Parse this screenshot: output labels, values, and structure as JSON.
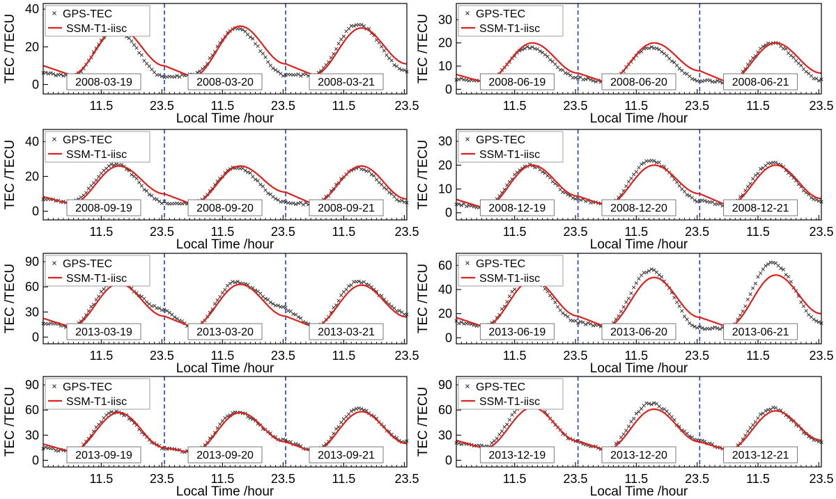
{
  "colors": {
    "gps": "#333333",
    "model": "#e0201b",
    "divider": "#1f3fd6",
    "axis": "#000000",
    "background": "#ffffff"
  },
  "shared": {
    "ylabel": "TEC /TECU",
    "xlabel": "Local Time /hour",
    "xticks": [
      "11.5",
      "23.5",
      "11.5",
      "23.5",
      "11.5",
      "23.5"
    ],
    "legend": {
      "gps_label": "GPS-TEC",
      "model_label": "SSM-T1-iisc"
    }
  },
  "chart_data": [
    {
      "type": "line",
      "title": "",
      "xlabel": "Local Time /hour",
      "ylabel": "TEC /TECU",
      "xlim": [
        0,
        72
      ],
      "ylim": [
        -5,
        43
      ],
      "yticks": [
        0,
        20,
        40
      ],
      "day_dividers": [
        24,
        48
      ],
      "dates": [
        "2008-03-19",
        "2008-03-20",
        "2008-03-21"
      ],
      "series": [
        {
          "name": "GPS-TEC",
          "style": "x-markers",
          "daily": [
            {
              "min": 4,
              "max": 29,
              "end": 4
            },
            {
              "min": 5,
              "max": 30,
              "end": 5
            },
            {
              "min": 5,
              "max": 32,
              "end": 7
            }
          ]
        },
        {
          "name": "SSM-T1-iisc",
          "style": "line",
          "daily": [
            {
              "min": 5,
              "max": 30,
              "end": 10
            },
            {
              "min": 4,
              "max": 31,
              "end": 11
            },
            {
              "min": 5,
              "max": 30,
              "end": 11
            }
          ]
        }
      ]
    },
    {
      "type": "line",
      "title": "",
      "xlabel": "Local Time /hour",
      "ylabel": "TEC /TECU",
      "xlim": [
        0,
        72
      ],
      "ylim": [
        -2,
        37
      ],
      "yticks": [
        0,
        10,
        20,
        30
      ],
      "day_dividers": [
        24,
        48
      ],
      "dates": [
        "2008-06-19",
        "2008-06-20",
        "2008-06-21"
      ],
      "series": [
        {
          "name": "GPS-TEC",
          "style": "x-markers",
          "daily": [
            {
              "min": 3,
              "max": 18,
              "end": 5
            },
            {
              "min": 3,
              "max": 18,
              "end": 4
            },
            {
              "min": 3,
              "max": 20,
              "end": 4
            }
          ]
        },
        {
          "name": "SSM-T1-iisc",
          "style": "line",
          "daily": [
            {
              "min": 3,
              "max": 20,
              "end": 7
            },
            {
              "min": 3,
              "max": 20,
              "end": 8
            },
            {
              "min": 3,
              "max": 20,
              "end": 7
            }
          ]
        }
      ]
    },
    {
      "type": "line",
      "title": "",
      "xlabel": "Local Time /hour",
      "ylabel": "TEC /TECU",
      "xlim": [
        0,
        72
      ],
      "ylim": [
        -5,
        47
      ],
      "yticks": [
        0,
        20,
        40
      ],
      "day_dividers": [
        24,
        48
      ],
      "dates": [
        "2008-09-19",
        "2008-09-20",
        "2008-09-21"
      ],
      "series": [
        {
          "name": "GPS-TEC",
          "style": "x-markers",
          "daily": [
            {
              "min": 5,
              "max": 27,
              "end": 5
            },
            {
              "min": 4,
              "max": 25,
              "end": 5
            },
            {
              "min": 4,
              "max": 25,
              "end": 5
            }
          ]
        },
        {
          "name": "SSM-T1-iisc",
          "style": "line",
          "daily": [
            {
              "min": 4,
              "max": 26,
              "end": 10
            },
            {
              "min": 4,
              "max": 26,
              "end": 11
            },
            {
              "min": 4,
              "max": 26,
              "end": 7
            }
          ]
        }
      ]
    },
    {
      "type": "line",
      "title": "",
      "xlabel": "Local Time /hour",
      "ylabel": "TEC /TECU",
      "xlim": [
        0,
        72
      ],
      "ylim": [
        -3,
        35
      ],
      "yticks": [
        0,
        10,
        20,
        30
      ],
      "day_dividers": [
        24,
        48
      ],
      "dates": [
        "2008-12-19",
        "2008-12-20",
        "2008-12-21"
      ],
      "series": [
        {
          "name": "GPS-TEC",
          "style": "x-markers",
          "daily": [
            {
              "min": 2,
              "max": 20,
              "end": 6
            },
            {
              "min": 3,
              "max": 22,
              "end": 5
            },
            {
              "min": 3,
              "max": 21,
              "end": 5
            }
          ]
        },
        {
          "name": "SSM-T1-iisc",
          "style": "line",
          "daily": [
            {
              "min": 2,
              "max": 20,
              "end": 7
            },
            {
              "min": 3,
              "max": 20,
              "end": 8
            },
            {
              "min": 3,
              "max": 20,
              "end": 6
            }
          ]
        }
      ]
    },
    {
      "type": "line",
      "title": "",
      "xlabel": "Local Time /hour",
      "ylabel": "TEC /TECU",
      "xlim": [
        0,
        72
      ],
      "ylim": [
        -8,
        100
      ],
      "yticks": [
        0,
        30,
        60,
        90
      ],
      "day_dividers": [
        24,
        48
      ],
      "dates": [
        "2013-03-19",
        "2013-03-20",
        "2013-03-21"
      ],
      "series": [
        {
          "name": "GPS-TEC",
          "style": "x-markers",
          "daily": [
            {
              "min": 12,
              "max": 66,
              "end": 33
            },
            {
              "min": 10,
              "max": 66,
              "end": 35
            },
            {
              "min": 10,
              "max": 66,
              "end": 28
            }
          ]
        },
        {
          "name": "SSM-T1-iisc",
          "style": "line",
          "daily": [
            {
              "min": 12,
              "max": 64,
              "end": 25
            },
            {
              "min": 12,
              "max": 63,
              "end": 25
            },
            {
              "min": 12,
              "max": 62,
              "end": 24
            }
          ]
        }
      ]
    },
    {
      "type": "line",
      "title": "",
      "xlabel": "Local Time /hour",
      "ylabel": "TEC /TECU",
      "xlim": [
        0,
        72
      ],
      "ylim": [
        -5,
        70
      ],
      "yticks": [
        0,
        20,
        40,
        60
      ],
      "day_dividers": [
        24,
        48
      ],
      "dates": [
        "2013-06-19",
        "2013-06-20",
        "2013-06-21"
      ],
      "series": [
        {
          "name": "GPS-TEC",
          "style": "x-markers",
          "daily": [
            {
              "min": 9,
              "max": 50,
              "end": 13
            },
            {
              "min": 9,
              "max": 56,
              "end": 8
            },
            {
              "min": 8,
              "max": 62,
              "end": 12
            }
          ]
        },
        {
          "name": "SSM-T1-iisc",
          "style": "line",
          "daily": [
            {
              "min": 9,
              "max": 48,
              "end": 18
            },
            {
              "min": 9,
              "max": 50,
              "end": 17
            },
            {
              "min": 9,
              "max": 52,
              "end": 20
            }
          ]
        }
      ]
    },
    {
      "type": "line",
      "title": "",
      "xlabel": "Local Time /hour",
      "ylabel": "TEC /TECU",
      "xlim": [
        0,
        72
      ],
      "ylim": [
        -8,
        100
      ],
      "yticks": [
        0,
        30,
        60,
        90
      ],
      "day_dividers": [
        24,
        48
      ],
      "dates": [
        "2013-09-19",
        "2013-09-20",
        "2013-09-21"
      ],
      "series": [
        {
          "name": "GPS-TEC",
          "style": "x-markers",
          "daily": [
            {
              "min": 10,
              "max": 58,
              "end": 15
            },
            {
              "min": 9,
              "max": 57,
              "end": 24
            },
            {
              "min": 10,
              "max": 61,
              "end": 22
            }
          ]
        },
        {
          "name": "SSM-T1-iisc",
          "style": "line",
          "daily": [
            {
              "min": 10,
              "max": 57,
              "end": 15
            },
            {
              "min": 9,
              "max": 57,
              "end": 22
            },
            {
              "min": 10,
              "max": 58,
              "end": 20
            }
          ]
        }
      ]
    },
    {
      "type": "line",
      "title": "",
      "xlabel": "Local Time /hour",
      "ylabel": "TEC /TECU",
      "xlim": [
        0,
        72
      ],
      "ylim": [
        -8,
        100
      ],
      "yticks": [
        0,
        30,
        60,
        90
      ],
      "day_dividers": [
        24,
        48
      ],
      "dates": [
        "2013-12-19",
        "2013-12-20",
        "2013-12-21"
      ],
      "series": [
        {
          "name": "GPS-TEC",
          "style": "x-markers",
          "daily": [
            {
              "min": 16,
              "max": 70,
              "end": 22
            },
            {
              "min": 12,
              "max": 68,
              "end": 24
            },
            {
              "min": 12,
              "max": 62,
              "end": 22
            }
          ]
        },
        {
          "name": "SSM-T1-iisc",
          "style": "line",
          "daily": [
            {
              "min": 14,
              "max": 63,
              "end": 23
            },
            {
              "min": 12,
              "max": 61,
              "end": 22
            },
            {
              "min": 12,
              "max": 59,
              "end": 24
            }
          ]
        }
      ]
    }
  ]
}
